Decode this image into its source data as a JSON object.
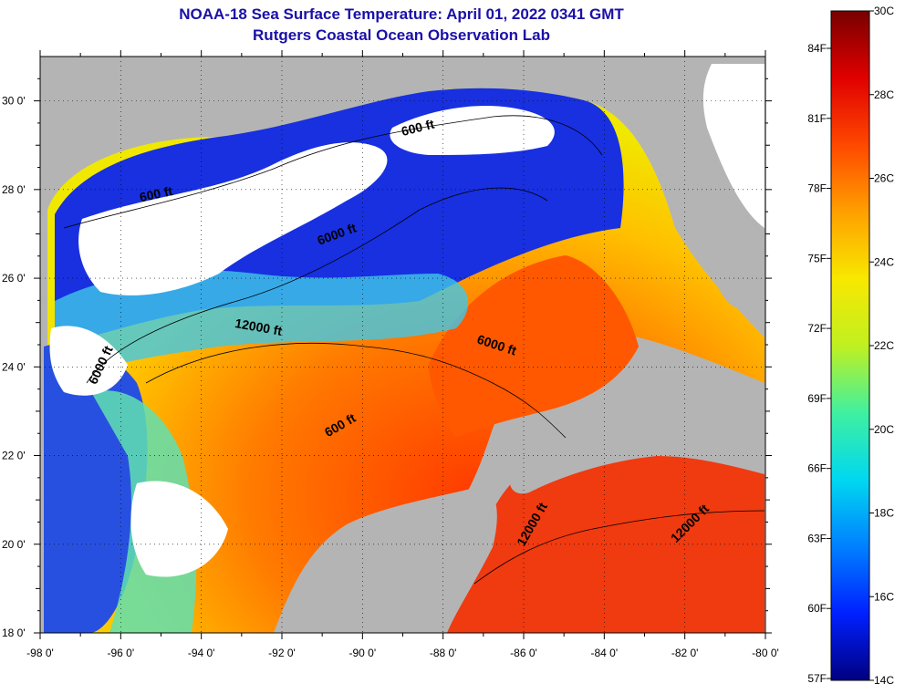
{
  "title": "NOAA-18 Sea Surface Temperature:  April 01, 2022 0341 GMT",
  "subtitle": "Rutgers Coastal Ocean Observation Lab",
  "map": {
    "lon_range": [
      -98,
      -80
    ],
    "lat_range": [
      18,
      31
    ],
    "lon_ticks": [
      "-98 0'",
      "-96 0'",
      "-94 0'",
      "-92 0'",
      "-90 0'",
      "-88 0'",
      "-86 0'",
      "-84 0'",
      "-82 0'",
      "-80 0'"
    ],
    "lat_ticks": [
      "30 0'",
      "28 0'",
      "26 0'",
      "24 0'",
      "22 0'",
      "20 0'",
      "18 0'"
    ],
    "grid": "dotted",
    "land_color": "#b4b4b4",
    "cloud_color": "#ffffff",
    "contour_labels": [
      {
        "text": "600 ft",
        "lon": -95.1,
        "lat": 27.8,
        "rotate": -12
      },
      {
        "text": "600 ft",
        "lon": -88.6,
        "lat": 29.3,
        "rotate": -14
      },
      {
        "text": "6000 ft",
        "lon": -90.6,
        "lat": 26.9,
        "rotate": -20
      },
      {
        "text": "12000 ft",
        "lon": -92.6,
        "lat": 24.8,
        "rotate": 10
      },
      {
        "text": "6000 ft",
        "lon": -96.4,
        "lat": 24.0,
        "rotate": -65
      },
      {
        "text": "6000 ft",
        "lon": -86.7,
        "lat": 24.4,
        "rotate": 18
      },
      {
        "text": "600 ft",
        "lon": -90.5,
        "lat": 22.6,
        "rotate": -30
      },
      {
        "text": "12000 ft",
        "lon": -85.7,
        "lat": 20.4,
        "rotate": -60
      },
      {
        "text": "12000 ft",
        "lon": -81.8,
        "lat": 20.4,
        "rotate": -45
      }
    ]
  },
  "colorbar": {
    "celsius": [
      "30C",
      "28C",
      "26C",
      "24C",
      "22C",
      "20C",
      "18C",
      "16C",
      "14C"
    ],
    "fahrenheit": [
      "84F",
      "81F",
      "78F",
      "75F",
      "72F",
      "69F",
      "66F",
      "63F",
      "60F",
      "57F"
    ],
    "colors": [
      "#000080",
      "#0020ff",
      "#0080ff",
      "#00d8f0",
      "#40f0a0",
      "#c0f020",
      "#f8e800",
      "#ffa000",
      "#ff4800",
      "#e00000",
      "#780000"
    ]
  }
}
